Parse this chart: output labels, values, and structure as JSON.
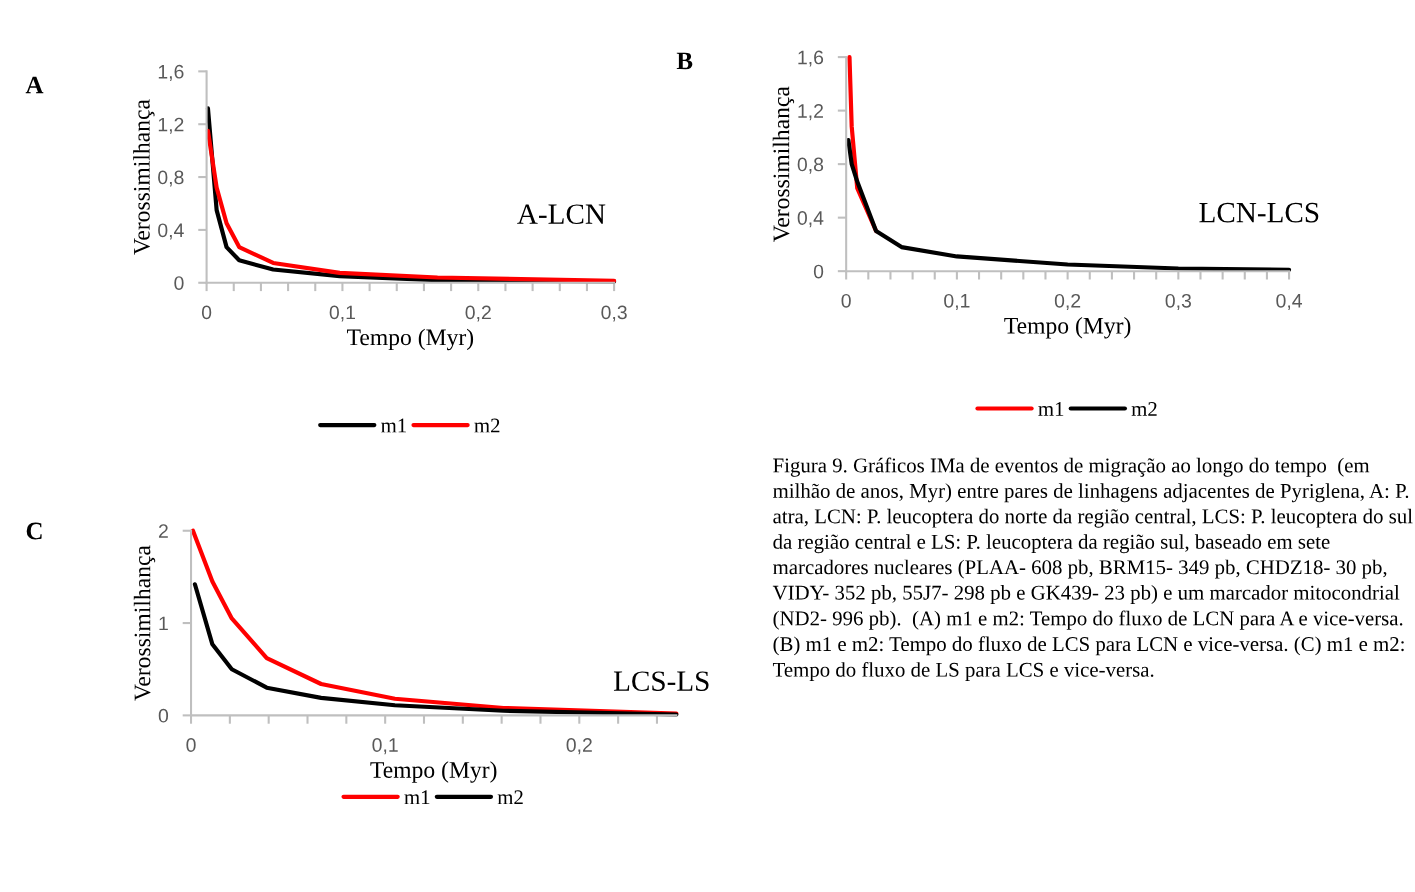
{
  "chart_data": [
    {
      "type": "line",
      "title": "A",
      "xlabel": "Tempo (Myr)",
      "ylabel": "Verossimilhança",
      "annotations": [
        "A-LCN"
      ],
      "legend": "bottom",
      "marker": "none",
      "line_style": "solid",
      "grid": false,
      "xlim": [
        0,
        0.3
      ],
      "xticks": [
        0,
        {
          "value": 0.02,
          "label": null
        },
        {
          "value": 0.04,
          "label": null
        },
        {
          "value": 0.06,
          "label": null
        },
        {
          "value": 0.08,
          "label": null
        },
        {
          "value": 0.1,
          "label": "0,1"
        },
        {
          "value": 0.12,
          "label": null
        },
        {
          "value": 0.14,
          "label": null
        },
        {
          "value": 0.16,
          "label": null
        },
        {
          "value": 0.18,
          "label": null
        },
        {
          "value": 0.2,
          "label": "0,2"
        },
        {
          "value": 0.22,
          "label": null
        },
        {
          "value": 0.24,
          "label": null
        },
        {
          "value": 0.26,
          "label": null
        },
        {
          "value": 0.28,
          "label": null
        },
        {
          "value": 0.3,
          "label": "0,3"
        }
      ],
      "ylim": [
        0,
        1.6
      ],
      "yticks": [
        0,
        {
          "value": 0.4,
          "label": "0,4"
        },
        {
          "value": 0.8,
          "label": "0,8"
        },
        {
          "value": 1.2,
          "label": "1,2"
        },
        {
          "value": 1.6,
          "label": "1,6"
        }
      ],
      "series": [
        {
          "name": "m1",
          "color": "#000000",
          "x": [
            0.001,
            0.0074,
            0.0147,
            0.024,
            0.049,
            0.098,
            0.17,
            0.3
          ],
          "values": [
            1.32,
            0.55,
            0.27,
            0.17,
            0.1,
            0.05,
            0.02,
            0.01
          ]
        },
        {
          "name": "m2",
          "color": "#ff0000",
          "x": [
            0.001,
            0.0074,
            0.0147,
            0.024,
            0.049,
            0.098,
            0.17,
            0.3
          ],
          "values": [
            1.15,
            0.72,
            0.45,
            0.27,
            0.15,
            0.075,
            0.04,
            0.015
          ]
        }
      ]
    },
    {
      "type": "line",
      "title": "B",
      "xlabel": "Tempo (Myr)",
      "ylabel": "Verossimilhança",
      "annotations": [
        "LCN-LCS"
      ],
      "legend": "bottom",
      "marker": "none",
      "line_style": "solid",
      "grid": false,
      "xlim": [
        0,
        0.4
      ],
      "xticks": [
        0,
        {
          "value": 0.02,
          "label": null
        },
        {
          "value": 0.04,
          "label": null
        },
        {
          "value": 0.06,
          "label": null
        },
        {
          "value": 0.08,
          "label": null
        },
        {
          "value": 0.1,
          "label": "0,1"
        },
        {
          "value": 0.12,
          "label": null
        },
        {
          "value": 0.14,
          "label": null
        },
        {
          "value": 0.16,
          "label": null
        },
        {
          "value": 0.18,
          "label": null
        },
        {
          "value": 0.2,
          "label": "0,2"
        },
        {
          "value": 0.22,
          "label": null
        },
        {
          "value": 0.24,
          "label": null
        },
        {
          "value": 0.26,
          "label": null
        },
        {
          "value": 0.28,
          "label": null
        },
        {
          "value": 0.3,
          "label": "0,3"
        },
        {
          "value": 0.32,
          "label": null
        },
        {
          "value": 0.34,
          "label": null
        },
        {
          "value": 0.36,
          "label": null
        },
        {
          "value": 0.38,
          "label": null
        },
        {
          "value": 0.4,
          "label": "0,4"
        }
      ],
      "ylim": [
        0,
        1.6
      ],
      "yticks": [
        0,
        {
          "value": 0.4,
          "label": "0,4"
        },
        {
          "value": 0.8,
          "label": "0,8"
        },
        {
          "value": 1.2,
          "label": "1,2"
        },
        {
          "value": 1.6,
          "label": "1,6"
        }
      ],
      "series": [
        {
          "name": "m1",
          "color": "#ff0000",
          "x": [
            0.003,
            0.005,
            0.01,
            0.027
          ],
          "values": [
            1.6,
            1.08,
            0.62,
            0.3
          ]
        },
        {
          "name": "m2",
          "color": "#000000",
          "x": [
            0.002,
            0.005,
            0.01,
            0.027,
            0.05,
            0.1,
            0.2,
            0.3,
            0.4
          ],
          "values": [
            0.98,
            0.8,
            0.67,
            0.3,
            0.18,
            0.11,
            0.05,
            0.02,
            0.01
          ]
        }
      ]
    },
    {
      "type": "line",
      "title": "C",
      "xlabel": "Tempo (Myr)",
      "ylabel": "Verossimilhança",
      "annotations": [
        "LCS-LS"
      ],
      "legend": "bottom",
      "marker": "none",
      "line_style": "solid",
      "grid": false,
      "xlim": [
        0,
        0.25
      ],
      "xticks": [
        0,
        {
          "value": 0.02,
          "label": null
        },
        {
          "value": 0.04,
          "label": null
        },
        {
          "value": 0.06,
          "label": null
        },
        {
          "value": 0.08,
          "label": null
        },
        {
          "value": 0.1,
          "label": "0,1"
        },
        {
          "value": 0.12,
          "label": null
        },
        {
          "value": 0.14,
          "label": null
        },
        {
          "value": 0.16,
          "label": null
        },
        {
          "value": 0.18,
          "label": null
        },
        {
          "value": 0.2,
          "label": "0,2"
        },
        {
          "value": 0.22,
          "label": null
        },
        {
          "value": 0.24,
          "label": null
        }
      ],
      "ylim": [
        0,
        2
      ],
      "yticks": [
        0,
        1,
        2
      ],
      "series": [
        {
          "name": "m1",
          "color": "#ff0000",
          "x": [
            0.001,
            0.011,
            0.021,
            0.039,
            0.067,
            0.105,
            0.161,
            0.25
          ],
          "values": [
            2.0,
            1.45,
            1.05,
            0.62,
            0.34,
            0.18,
            0.08,
            0.02
          ]
        },
        {
          "name": "m2",
          "color": "#000000",
          "x": [
            0.002,
            0.011,
            0.021,
            0.039,
            0.067,
            0.105,
            0.161,
            0.25
          ],
          "values": [
            1.42,
            0.77,
            0.5,
            0.3,
            0.19,
            0.11,
            0.05,
            0.01
          ]
        }
      ]
    },
    {
      "type": "other",
      "annotations": [
        "Figura 9. Gráficos IMa de eventos de migração ao longo do tempo  (em milhão de anos, Myr) entre pares de linhagens adjacentes de Pyriglena, A: P. atra, LCN: P. leucoptera do norte da região central, LCS: P. leucoptera do sul da região central e LS: P. leucoptera da região sul, baseado em sete marcadores nucleares (PLAA- 608 pb, BRM15- 349 pb, CHDZ18- 30 pb, VIDY- 352 pb, 55J7- 298 pb e GK439- 23 pb) e um marcador mitocondrial (ND2- 996 pb).  (A) m1 e m2: Tempo do fluxo de LCN para A e vice-versa. (B) m1 e m2: Tempo do fluxo de LCS para LCN e vice-versa. (C) m1 e m2: Tempo do fluxo de LS para LCS e vice-versa."
      ]
    }
  ]
}
